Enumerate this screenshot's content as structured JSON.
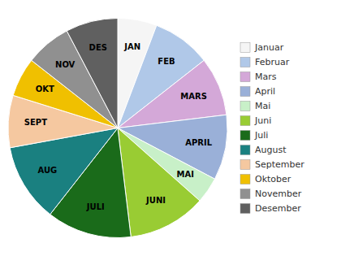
{
  "chart_data": {
    "type": "pie",
    "categories": [
      "JAN",
      "FEB",
      "MARS",
      "APRIL",
      "MAI",
      "JUNI",
      "JULI",
      "AUG",
      "SEPT",
      "OKT",
      "NOV",
      "DES"
    ],
    "values": [
      6,
      9,
      9,
      10,
      4,
      12,
      13,
      12,
      8,
      6,
      7,
      8
    ],
    "colors": [
      "#f5f5f5",
      "#b0c8e8",
      "#d4a8d8",
      "#9ab0d8",
      "#c8f0c8",
      "#99cc33",
      "#1a6b1a",
      "#1a8080",
      "#f5c8a0",
      "#f0c000",
      "#909090",
      "#606060"
    ],
    "legend_labels": [
      "Januar",
      "Februar",
      "Mars",
      "April",
      "Mai",
      "Juni",
      "Juli",
      "August",
      "September",
      "Oktober",
      "November",
      "Desember"
    ],
    "legend": "right"
  }
}
